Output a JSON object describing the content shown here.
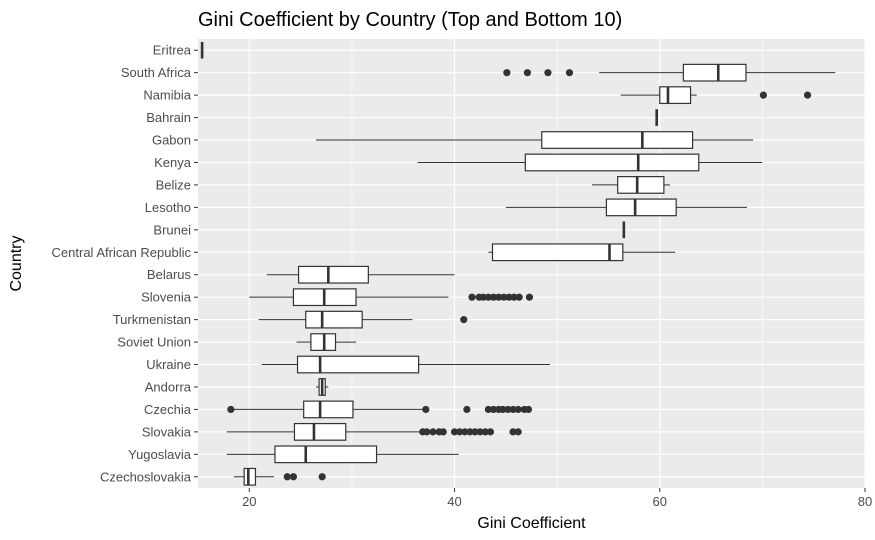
{
  "chart_data": {
    "type": "boxplot",
    "orientation": "horizontal",
    "title": "Gini Coefficient by Country (Top and Bottom 10)",
    "xlabel": "Gini Coefficient",
    "ylabel": "Country",
    "xlim": [
      15,
      80
    ],
    "xticks": [
      20,
      40,
      60,
      80
    ],
    "grid": true,
    "legend": "none",
    "colors": {
      "panel": "#ebebeb",
      "grid": "#ffffff",
      "box_fill": "#ffffff",
      "stroke": "#333333",
      "text": "#4d4d4d"
    },
    "categories": [
      "Eritrea",
      "South Africa",
      "Namibia",
      "Bahrain",
      "Gabon",
      "Kenya",
      "Belize",
      "Lesotho",
      "Brunei",
      "Central African Republic",
      "Belarus",
      "Slovenia",
      "Turkmenistan",
      "Soviet Union",
      "Ukraine",
      "Andorra",
      "Czechia",
      "Slovakia",
      "Yugoslavia",
      "Czechoslovakia"
    ],
    "boxes": [
      {
        "country": "Eritrea",
        "min": 15.4,
        "q1": 15.4,
        "median": 15.4,
        "q3": 15.4,
        "max": 15.4,
        "outliers": []
      },
      {
        "country": "South Africa",
        "min": 54.1,
        "q1": 62.3,
        "median": 65.7,
        "q3": 68.4,
        "max": 77.1,
        "outliers": [
          45.1,
          47.1,
          49.1,
          51.2
        ]
      },
      {
        "country": "Namibia",
        "min": 56.2,
        "q1": 60.0,
        "median": 60.8,
        "q3": 63.0,
        "max": 63.6,
        "outliers": [
          70.1,
          74.4
        ]
      },
      {
        "country": "Bahrain",
        "min": 59.7,
        "q1": 59.7,
        "median": 59.7,
        "q3": 59.7,
        "max": 59.7,
        "outliers": []
      },
      {
        "country": "Gabon",
        "min": 26.5,
        "q1": 48.5,
        "median": 58.3,
        "q3": 63.2,
        "max": 69.1,
        "outliers": []
      },
      {
        "country": "Kenya",
        "min": 36.4,
        "q1": 46.9,
        "median": 57.9,
        "q3": 63.8,
        "max": 70.0,
        "outliers": []
      },
      {
        "country": "Belize",
        "min": 53.4,
        "q1": 55.9,
        "median": 57.8,
        "q3": 60.4,
        "max": 61.0,
        "outliers": []
      },
      {
        "country": "Lesotho",
        "min": 45.0,
        "q1": 54.8,
        "median": 57.6,
        "q3": 61.6,
        "max": 68.5,
        "outliers": []
      },
      {
        "country": "Brunei",
        "min": 56.5,
        "q1": 56.5,
        "median": 56.5,
        "q3": 56.5,
        "max": 56.5,
        "outliers": []
      },
      {
        "country": "Central African Republic",
        "min": 43.3,
        "q1": 43.7,
        "median": 55.1,
        "q3": 56.4,
        "max": 61.5,
        "outliers": []
      },
      {
        "country": "Belarus",
        "min": 21.7,
        "q1": 24.8,
        "median": 27.7,
        "q3": 31.6,
        "max": 40.0,
        "outliers": []
      },
      {
        "country": "Slovenia",
        "min": 20.0,
        "q1": 24.3,
        "median": 27.3,
        "q3": 30.4,
        "max": 39.4,
        "outliers": [
          41.7,
          42.4,
          42.8,
          43.3,
          43.8,
          44.3,
          44.8,
          45.3,
          45.8,
          46.3,
          47.3
        ]
      },
      {
        "country": "Turkmenistan",
        "min": 20.9,
        "q1": 25.5,
        "median": 27.1,
        "q3": 31.0,
        "max": 35.9,
        "outliers": [
          40.9
        ]
      },
      {
        "country": "Soviet Union",
        "min": 24.6,
        "q1": 26.0,
        "median": 27.3,
        "q3": 28.4,
        "max": 30.4,
        "outliers": []
      },
      {
        "country": "Ukraine",
        "min": 21.2,
        "q1": 24.7,
        "median": 26.9,
        "q3": 36.5,
        "max": 49.3,
        "outliers": []
      },
      {
        "country": "Andorra",
        "min": 26.5,
        "q1": 26.8,
        "median": 27.1,
        "q3": 27.4,
        "max": 27.7,
        "outliers": []
      },
      {
        "country": "Czechia",
        "min": 18.2,
        "q1": 25.3,
        "median": 26.9,
        "q3": 30.1,
        "max": 37.2,
        "outliers": [
          18.2,
          37.2,
          41.2,
          43.3,
          43.8,
          44.3,
          44.7,
          45.2,
          45.7,
          46.2,
          46.8,
          47.2
        ]
      },
      {
        "country": "Slovakia",
        "min": 17.8,
        "q1": 24.4,
        "median": 26.3,
        "q3": 29.4,
        "max": 36.6,
        "outliers": [
          36.9,
          37.3,
          37.9,
          38.5,
          38.9,
          40.0,
          40.5,
          41.0,
          41.5,
          42.0,
          42.5,
          43.0,
          43.5,
          45.7,
          46.2
        ]
      },
      {
        "country": "Yugoslavia",
        "min": 17.8,
        "q1": 22.5,
        "median": 25.5,
        "q3": 32.4,
        "max": 40.4,
        "outliers": []
      },
      {
        "country": "Czechoslovakia",
        "min": 18.5,
        "q1": 19.5,
        "median": 19.9,
        "q3": 20.6,
        "max": 22.4,
        "outliers": [
          23.7,
          24.3,
          27.1
        ]
      }
    ]
  }
}
